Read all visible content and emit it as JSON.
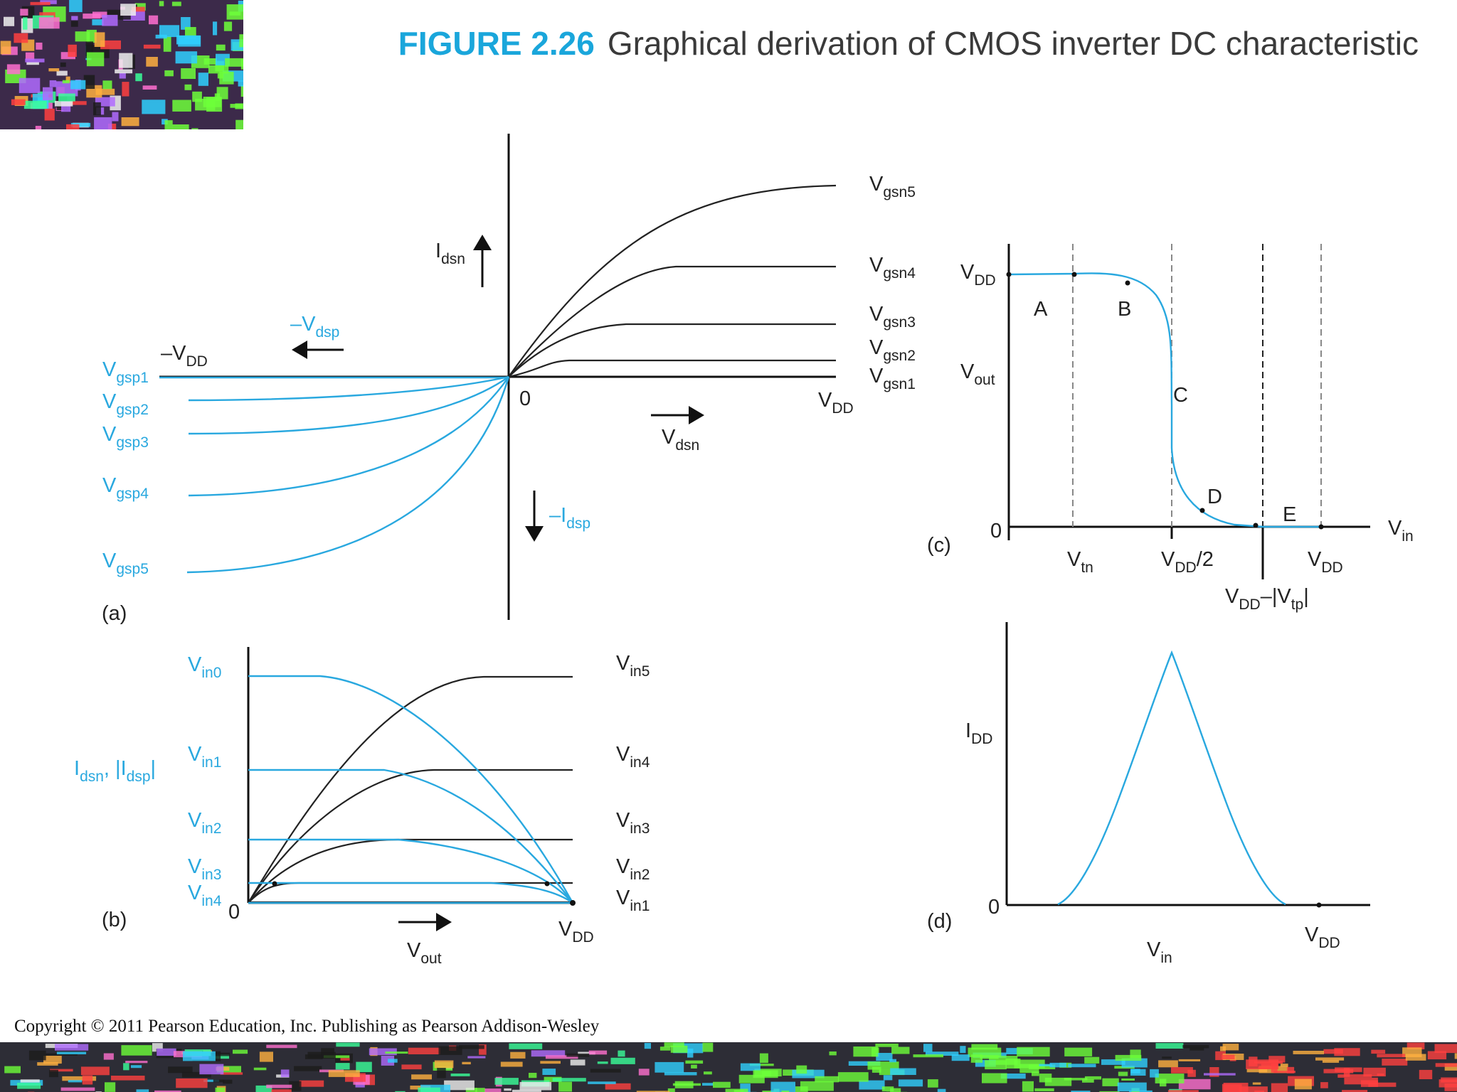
{
  "title": {
    "figure_no": "FIGURE 2.26",
    "caption": "Graphical derivation of CMOS inverter DC characteristic"
  },
  "copyright": "Copyright © 2011 Pearson Education, Inc. Publishing as Pearson Addison-Wesley",
  "colors": {
    "blue": "#29a8df",
    "black": "#222222",
    "title_blue": "#1aa6db"
  },
  "panel_a": {
    "tag": "(a)",
    "origin": "0",
    "vdd": "VDD",
    "neg_vdd": "–VDD",
    "idsn": "Idsn",
    "vdsn": "Vdsn",
    "neg_idsp": "–Idsp",
    "neg_vdsp": "–Vdsp",
    "n_curves": [
      "Vgsn1",
      "Vgsn2",
      "Vgsn3",
      "Vgsn4",
      "Vgsn5"
    ],
    "p_curves": [
      "Vgsp1",
      "Vgsp2",
      "Vgsp3",
      "Vgsp4",
      "Vgsp5"
    ]
  },
  "panel_b": {
    "tag": "(b)",
    "origin": "0",
    "vdd": "VDD",
    "ylabel": "Idsn, |Idsp|",
    "xlabel": "Vout",
    "p_labels": [
      "Vin0",
      "Vin1",
      "Vin2",
      "Vin3",
      "Vin4"
    ],
    "n_labels": [
      "Vin5",
      "Vin4",
      "Vin3",
      "Vin2",
      "Vin1"
    ]
  },
  "panel_c": {
    "tag": "(c)",
    "ylabel": "Vout",
    "xlabel": "Vin",
    "y_top": "VDD",
    "origin": "0",
    "x_ticks": [
      "Vtn",
      "VDD/2",
      "VDD–|Vtp|",
      "VDD"
    ],
    "regions": [
      "A",
      "B",
      "C",
      "D",
      "E"
    ]
  },
  "panel_d": {
    "tag": "(d)",
    "ylabel": "IDD",
    "xlabel": "Vin",
    "origin": "0",
    "vdd": "VDD"
  }
}
